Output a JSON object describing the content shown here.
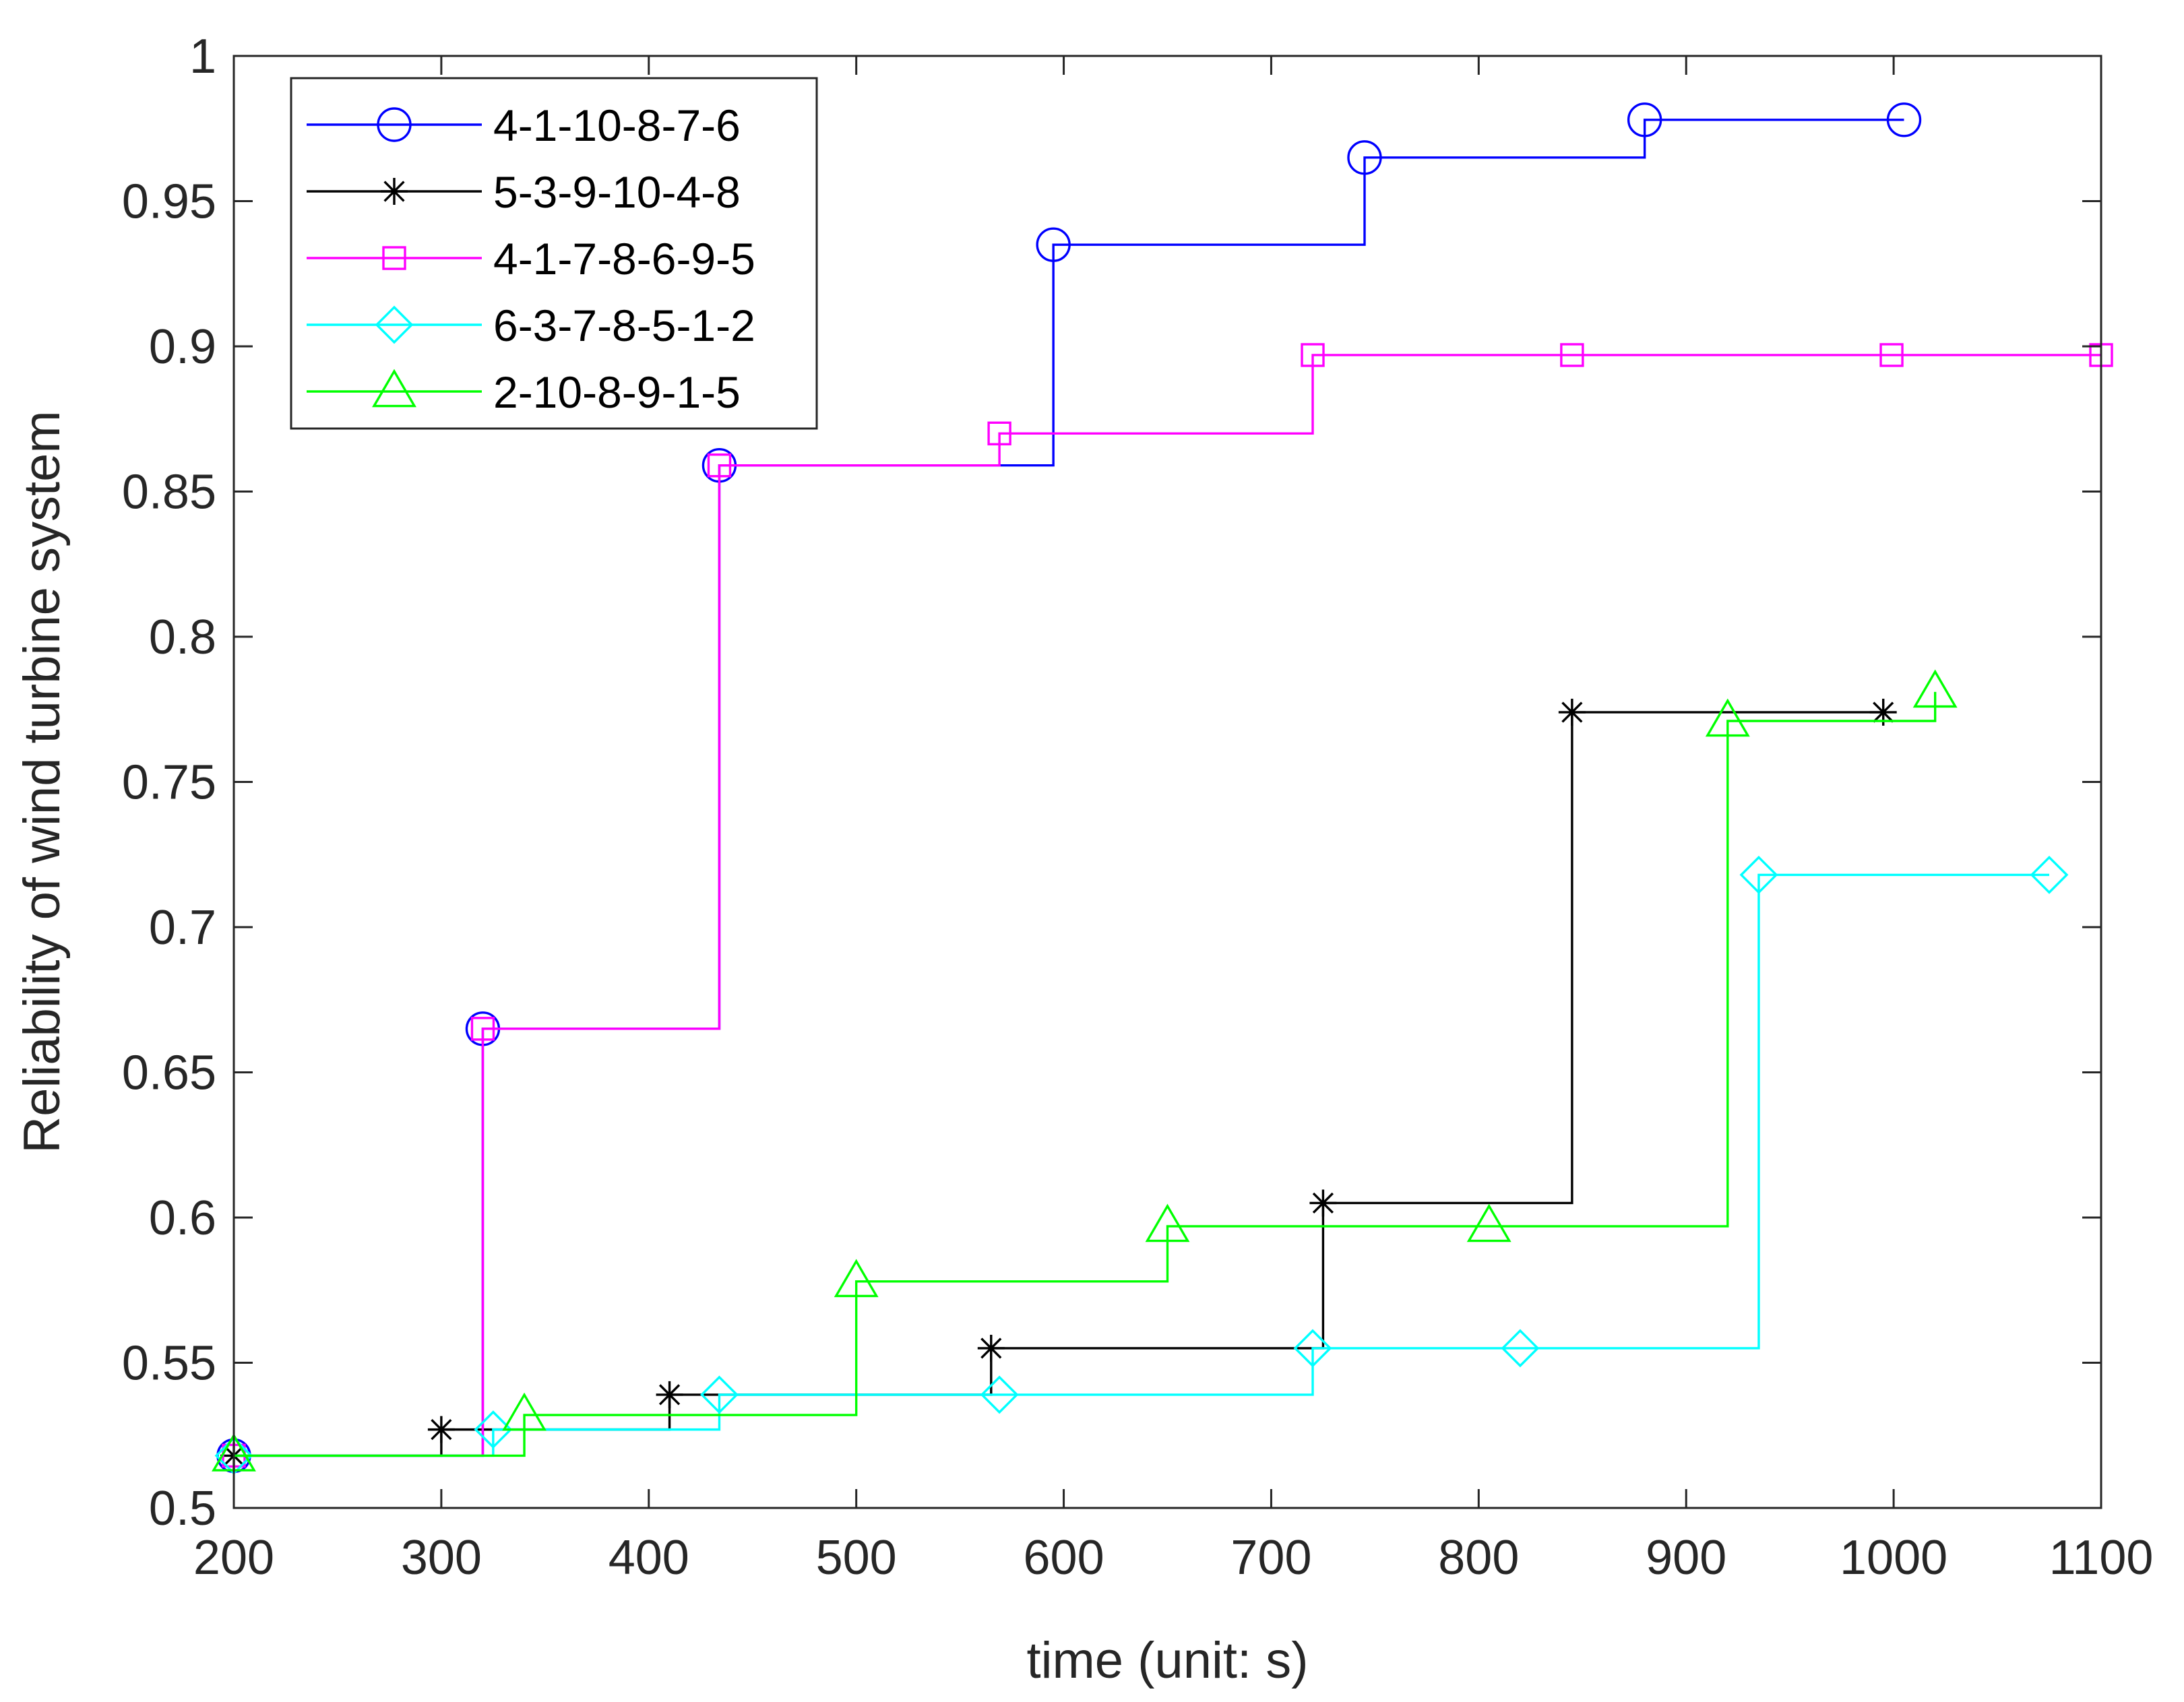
{
  "chart_data": {
    "type": "line",
    "step": "post",
    "title": "",
    "xlabel": "time (unit: s)",
    "ylabel": "Reliability of wind turbine system",
    "xlim": [
      200,
      1100
    ],
    "ylim": [
      0.5,
      1
    ],
    "xticks": [
      200,
      300,
      400,
      500,
      600,
      700,
      800,
      900,
      1000,
      1100
    ],
    "xtick_labels": [
      "200",
      "300",
      "400",
      "500",
      "600",
      "700",
      "800",
      "900",
      "1000",
      "1100"
    ],
    "yticks": [
      0.5,
      0.55,
      0.6,
      0.65,
      0.7,
      0.75,
      0.8,
      0.85,
      0.9,
      0.95,
      1
    ],
    "ytick_labels": [
      "0.5",
      "0.55",
      "0.6",
      "0.65",
      "0.7",
      "0.75",
      "0.8",
      "0.85",
      "0.9",
      "0.95",
      "1"
    ],
    "grid": false,
    "legend_position": "top-left",
    "series": [
      {
        "name": "4-1-10-8-7-6",
        "color": "#0000ff",
        "marker": "circle",
        "x": [
          200,
          320,
          434,
          595,
          745,
          880,
          1005
        ],
        "y": [
          0.518,
          0.665,
          0.859,
          0.935,
          0.965,
          0.978,
          0.978
        ]
      },
      {
        "name": "5-3-9-10-4-8",
        "color": "#000000",
        "marker": "asterisk",
        "x": [
          200,
          300,
          410,
          565,
          725,
          845,
          995
        ],
        "y": [
          0.518,
          0.527,
          0.539,
          0.555,
          0.605,
          0.774,
          0.774
        ]
      },
      {
        "name": "4-1-7-8-6-9-5",
        "color": "#ff00ff",
        "marker": "square",
        "x": [
          200,
          320,
          434,
          569,
          720,
          845,
          999,
          1100
        ],
        "y": [
          0.518,
          0.665,
          0.859,
          0.87,
          0.897,
          0.897,
          0.897,
          0.897
        ]
      },
      {
        "name": "6-3-7-8-5-1-2",
        "color": "#00ffff",
        "marker": "diamond",
        "x": [
          200,
          325,
          434,
          569,
          720,
          820,
          935,
          1075
        ],
        "y": [
          0.518,
          0.527,
          0.539,
          0.539,
          0.555,
          0.555,
          0.718,
          0.718
        ]
      },
      {
        "name": "2-10-8-9-1-5",
        "color": "#00ff00",
        "marker": "triangle",
        "x": [
          200,
          340,
          500,
          650,
          805,
          920,
          1020
        ],
        "y": [
          0.518,
          0.532,
          0.578,
          0.597,
          0.597,
          0.771,
          0.781
        ]
      }
    ]
  }
}
